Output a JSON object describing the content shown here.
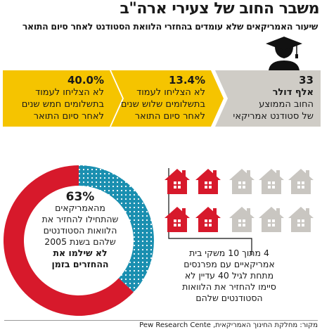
{
  "header": {
    "title": "משבר החוב של צעירי ארה\"ב",
    "subtitle": "שיעור האמריקאים שלא עומדים בהחזרי הלוואת הסטודנט לאחר סיום התואר"
  },
  "stats": [
    {
      "value": "33",
      "lines": [
        "אלף דולר",
        "החוב הממוצע",
        "של סטודנט אמריקאי"
      ],
      "bold_lines": 1,
      "color": "#cfccc6"
    },
    {
      "value": "13.4%",
      "lines": [
        "לא הצליחו לעמוד",
        "בתשלומים שלוש שנים",
        "לאחר סיום התואר"
      ],
      "bold_lines": 0,
      "color": "#f5c400"
    },
    {
      "value": "40.0%",
      "lines": [
        "לא הצליחו לעמוד",
        "בתשלומים חמש שנים",
        "לאחר סיום התואר"
      ],
      "bold_lines": 0,
      "color": "#f5c400"
    }
  ],
  "donut": {
    "percent": "63%",
    "lines": [
      "מהאמריקאים",
      "שהתחילו להחזיר את",
      "הלוואות הסטודנטים",
      "שלהם בשנת 2005"
    ],
    "bold_lines": [
      "לא שילמו את",
      "ההחזרים בזמן"
    ]
  },
  "houses_note": {
    "lines": [
      "4 מתוך 10 משקי בית",
      "אמריקאיים עם מפרנסים",
      "מתחת לגיל 40 עדיין לא",
      "סיימו להחזיר את הלוואות",
      "הסטודנטים שלהם"
    ]
  },
  "source": "מקור: מחלקת החינוך האמריקאית, Pew Research Cente",
  "colors": {
    "red": "#d7192b",
    "teal": "#1a8fb0",
    "yellow": "#f5c400",
    "gray": "#cfccc6",
    "house_gray": "#c9c6c1"
  },
  "chart_data": [
    {
      "type": "pie",
      "categories": [
        "לא שילמו את ההחזרים בזמן",
        ""
      ],
      "values": [
        63,
        37
      ]
    },
    {
      "type": "table",
      "categories": [
        "",
        ""
      ],
      "values": [
        4,
        6
      ],
      "total": 10
    }
  ]
}
